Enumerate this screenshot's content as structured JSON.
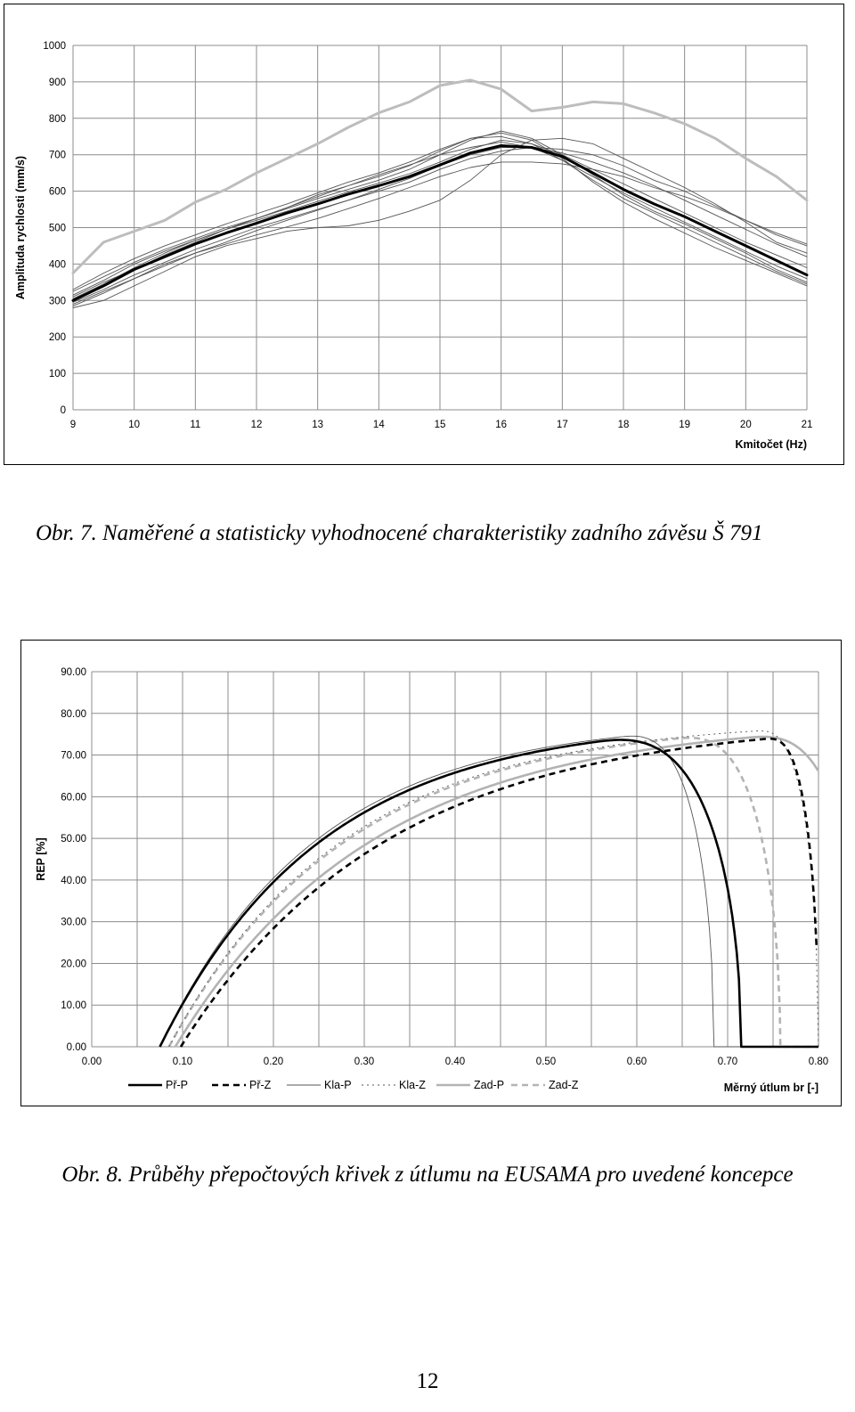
{
  "chart_data": [
    {
      "type": "line",
      "title": "",
      "xlabel": "Kmitočet (Hz)",
      "ylabel": "Amplituda rychlosti (mm/s)",
      "xlim": [
        9,
        21
      ],
      "ylim": [
        0,
        1000
      ],
      "x_ticks": [
        "9",
        "10",
        "11",
        "12",
        "13",
        "14",
        "15",
        "16",
        "17",
        "18",
        "19",
        "20",
        "21"
      ],
      "y_ticks": [
        "0",
        "100",
        "200",
        "300",
        "400",
        "500",
        "600",
        "700",
        "800",
        "900",
        "1000"
      ],
      "grid": true,
      "legend": "none",
      "x": [
        9,
        9.5,
        10,
        10.5,
        11,
        11.5,
        12,
        12.5,
        13,
        13.5,
        14,
        14.5,
        15,
        15.5,
        16,
        16.5,
        17,
        17.5,
        18,
        18.5,
        19,
        19.5,
        20,
        20.5,
        21
      ],
      "series": [
        {
          "style": "upper",
          "color": "#bdbdbd",
          "values": [
            375,
            460,
            490,
            520,
            570,
            605,
            650,
            690,
            730,
            775,
            815,
            845,
            890,
            905,
            880,
            820,
            830,
            845,
            840,
            815,
            785,
            745,
            690,
            640,
            575
          ]
        },
        {
          "style": "mean",
          "color": "#000000",
          "values": [
            300,
            340,
            385,
            420,
            455,
            485,
            512,
            540,
            565,
            592,
            615,
            640,
            672,
            705,
            725,
            720,
            695,
            650,
            605,
            565,
            530,
            490,
            450,
            410,
            370
          ]
        },
        {
          "style": "measured",
          "color": "#555555",
          "values": [
            325,
            365,
            405,
            440,
            470,
            500,
            525,
            552,
            580,
            605,
            630,
            660,
            700,
            740,
            765,
            745,
            700,
            645,
            590,
            545,
            510,
            470,
            430,
            385,
            350
          ]
        },
        {
          "style": "measured",
          "color": "#555555",
          "values": [
            310,
            350,
            385,
            425,
            460,
            495,
            525,
            555,
            590,
            615,
            640,
            670,
            710,
            745,
            760,
            740,
            690,
            625,
            570,
            525,
            485,
            445,
            410,
            375,
            340
          ]
        },
        {
          "style": "measured",
          "color": "#555555",
          "values": [
            315,
            355,
            400,
            435,
            465,
            495,
            520,
            545,
            572,
            598,
            622,
            648,
            680,
            715,
            740,
            730,
            700,
            660,
            620,
            580,
            540,
            500,
            460,
            425,
            390
          ]
        },
        {
          "style": "measured",
          "color": "#555555",
          "values": [
            295,
            330,
            370,
            405,
            440,
            470,
            500,
            525,
            550,
            575,
            600,
            625,
            660,
            690,
            710,
            720,
            715,
            700,
            670,
            630,
            600,
            560,
            520,
            480,
            450
          ]
        },
        {
          "style": "measured",
          "color": "#555555",
          "values": [
            290,
            325,
            360,
            400,
            430,
            455,
            480,
            502,
            525,
            552,
            580,
            610,
            640,
            665,
            680,
            680,
            675,
            660,
            640,
            610,
            585,
            555,
            520,
            485,
            455
          ]
        },
        {
          "style": "measured",
          "color": "#555555",
          "values": [
            280,
            300,
            340,
            380,
            420,
            450,
            470,
            490,
            500,
            505,
            520,
            545,
            575,
            630,
            700,
            740,
            745,
            730,
            690,
            650,
            610,
            565,
            515,
            460,
            430
          ]
        },
        {
          "style": "measured",
          "color": "#555555",
          "values": [
            330,
            375,
            415,
            450,
            480,
            510,
            538,
            565,
            595,
            625,
            650,
            680,
            715,
            745,
            750,
            730,
            685,
            630,
            580,
            540,
            500,
            460,
            420,
            380,
            345
          ]
        },
        {
          "style": "measured",
          "color": "#555555",
          "values": [
            285,
            320,
            360,
            395,
            430,
            460,
            492,
            520,
            548,
            575,
            605,
            635,
            670,
            700,
            720,
            720,
            705,
            680,
            650,
            615,
            575,
            535,
            495,
            455,
            420
          ]
        },
        {
          "style": "measured",
          "color": "#555555",
          "values": [
            305,
            345,
            390,
            430,
            465,
            495,
            525,
            555,
            585,
            615,
            645,
            672,
            700,
            720,
            735,
            720,
            685,
            640,
            595,
            555,
            515,
            475,
            435,
            395,
            360
          ]
        }
      ]
    },
    {
      "type": "line",
      "title": "",
      "xlabel": "Měrný útlum br [-]",
      "ylabel": "REP [%]",
      "xlim": [
        0,
        0.8
      ],
      "ylim": [
        0,
        90
      ],
      "x_ticks": [
        "0.00",
        "0.10",
        "0.20",
        "0.30",
        "0.40",
        "0.50",
        "0.60",
        "0.70",
        "0.80"
      ],
      "y_ticks": [
        "0.00",
        "10.00",
        "20.00",
        "30.00",
        "40.00",
        "50.00",
        "60.00",
        "70.00",
        "80.00",
        "90.00"
      ],
      "grid": true,
      "legend": "bottom",
      "series": [
        {
          "name": "Př-P",
          "color": "#000000",
          "dash": "solid",
          "width": 2.6,
          "b0": 0.075,
          "k": 5.6,
          "fall_start": 0.55,
          "fall_end": 0.715
        },
        {
          "name": "Př-Z",
          "color": "#000000",
          "dash": "dashed",
          "width": 2.6,
          "b0": 0.098,
          "k": 4.4,
          "fall_start": 0.74,
          "fall_end": 0.8
        },
        {
          "name": "Kla-P",
          "color": "#555555",
          "dash": "solid",
          "width": 0.9,
          "b0": 0.075,
          "k": 5.8,
          "fall_start": 0.58,
          "fall_end": 0.685
        },
        {
          "name": "Kla-Z",
          "color": "#555555",
          "dash": "dotted",
          "width": 0.9,
          "b0": 0.085,
          "k": 5.2,
          "fall_start": 0.73,
          "fall_end": 0.8
        },
        {
          "name": "Zad-P",
          "color": "#b3b3b3",
          "dash": "solid",
          "width": 2.6,
          "b0": 0.092,
          "k": 4.6,
          "fall_start": 0.72,
          "fall_end": 0.85
        },
        {
          "name": "Zad-Z",
          "color": "#b3b3b3",
          "dash": "dashed",
          "width": 2.6,
          "b0": 0.085,
          "k": 5.1,
          "fall_start": 0.64,
          "fall_end": 0.758
        }
      ]
    }
  ],
  "captions": {
    "fig7": "Obr. 7. Naměřené a statisticky vyhodnocené charakteristiky zadního závěsu Š 791",
    "fig8": "Obr. 8. Průběhy přepočtových křivek z útlumu na EUSAMA pro uvedené koncepce"
  },
  "page_number": "12"
}
